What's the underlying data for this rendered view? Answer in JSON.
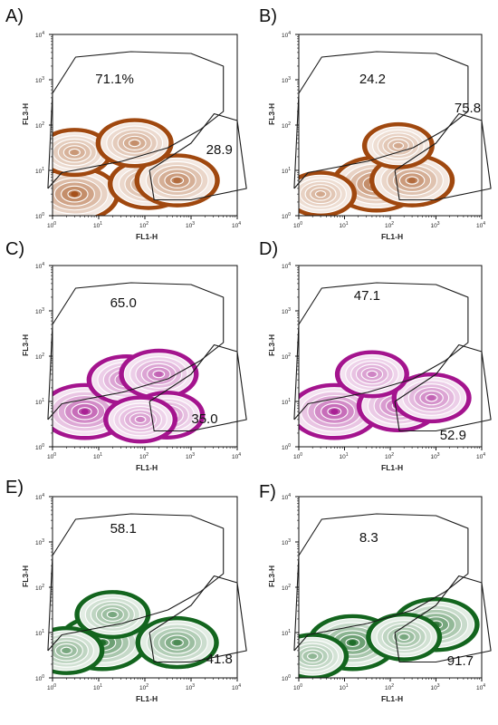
{
  "chart_data": [
    {
      "type": "contour",
      "panel": "A)",
      "xlabel": "FL1-H",
      "ylabel": "FL3-H",
      "scale": "log",
      "xlim": [
        1,
        10000
      ],
      "ylim": [
        1,
        10000
      ],
      "color": "#a0480f",
      "gates": [
        {
          "region": "upper",
          "percent": "71.1%"
        },
        {
          "region": "lower-right",
          "percent": "28.9"
        }
      ],
      "clusters": [
        {
          "x": 3,
          "y": 3,
          "level": 1.0
        },
        {
          "x": 120,
          "y": 5,
          "level": 0.75
        },
        {
          "x": 500,
          "y": 6,
          "level": 0.85
        },
        {
          "x": 3,
          "y": 25,
          "level": 0.6
        },
        {
          "x": 60,
          "y": 40,
          "level": 0.65
        }
      ]
    },
    {
      "type": "contour",
      "panel": "B)",
      "xlabel": "FL1-H",
      "ylabel": "FL3-H",
      "scale": "log",
      "xlim": [
        1,
        10000
      ],
      "ylim": [
        1,
        10000
      ],
      "color": "#a0480f",
      "gates": [
        {
          "region": "upper",
          "percent": "24.2"
        },
        {
          "region": "lower-right",
          "percent": "75.8"
        }
      ],
      "clusters": [
        {
          "x": 50,
          "y": 5,
          "level": 1.0
        },
        {
          "x": 300,
          "y": 6,
          "level": 0.85
        },
        {
          "x": 3,
          "y": 3,
          "level": 0.5
        },
        {
          "x": 150,
          "y": 35,
          "level": 0.5
        }
      ]
    },
    {
      "type": "contour",
      "panel": "C)",
      "xlabel": "FL1-H",
      "ylabel": "FL3-H",
      "scale": "log",
      "xlim": [
        1,
        10000
      ],
      "ylim": [
        1,
        10000
      ],
      "color": "#a4148e",
      "gates": [
        {
          "region": "upper",
          "percent": "65.0"
        },
        {
          "region": "lower-right",
          "percent": "35.0"
        }
      ],
      "clusters": [
        {
          "x": 5,
          "y": 6,
          "level": 1.0
        },
        {
          "x": 40,
          "y": 30,
          "level": 0.7
        },
        {
          "x": 200,
          "y": 40,
          "level": 0.7
        },
        {
          "x": 300,
          "y": 5,
          "level": 0.6
        },
        {
          "x": 80,
          "y": 4,
          "level": 0.55
        }
      ]
    },
    {
      "type": "contour",
      "panel": "D)",
      "xlabel": "FL1-H",
      "ylabel": "FL3-H",
      "scale": "log",
      "xlim": [
        1,
        10000
      ],
      "ylim": [
        1,
        10000
      ],
      "color": "#a4148e",
      "gates": [
        {
          "region": "upper",
          "percent": "47.1"
        },
        {
          "region": "lower-right",
          "percent": "52.9"
        }
      ],
      "clusters": [
        {
          "x": 6,
          "y": 6,
          "level": 1.0
        },
        {
          "x": 150,
          "y": 8,
          "level": 0.8
        },
        {
          "x": 800,
          "y": 12,
          "level": 0.7
        },
        {
          "x": 40,
          "y": 40,
          "level": 0.55
        }
      ]
    },
    {
      "type": "contour",
      "panel": "E)",
      "xlabel": "FL1-H",
      "ylabel": "FL3-H",
      "scale": "log",
      "xlim": [
        1,
        10000
      ],
      "ylim": [
        1,
        10000
      ],
      "color": "#13651e",
      "gates": [
        {
          "region": "upper",
          "percent": "58.1"
        },
        {
          "region": "lower-right",
          "percent": "41.8"
        }
      ],
      "clusters": [
        {
          "x": 12,
          "y": 6,
          "level": 1.0
        },
        {
          "x": 500,
          "y": 6,
          "level": 0.8
        },
        {
          "x": 20,
          "y": 25,
          "level": 0.6
        },
        {
          "x": 2,
          "y": 4,
          "level": 0.6
        }
      ]
    },
    {
      "type": "contour",
      "panel": "F)",
      "xlabel": "FL1-H",
      "ylabel": "FL3-H",
      "scale": "log",
      "xlim": [
        1,
        10000
      ],
      "ylim": [
        1,
        10000
      ],
      "color": "#13651e",
      "gates": [
        {
          "region": "upper",
          "percent": "8.3"
        },
        {
          "region": "lower-right",
          "percent": "91.7"
        }
      ],
      "clusters": [
        {
          "x": 15,
          "y": 6,
          "level": 1.0
        },
        {
          "x": 1000,
          "y": 15,
          "level": 0.9
        },
        {
          "x": 200,
          "y": 8,
          "level": 0.6
        },
        {
          "x": 2,
          "y": 3,
          "level": 0.5
        }
      ]
    }
  ]
}
